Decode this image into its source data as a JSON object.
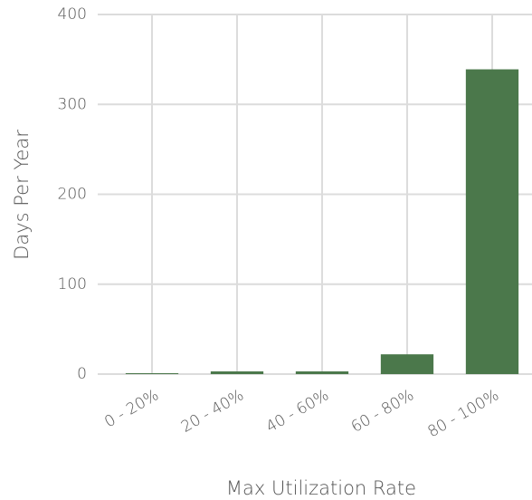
{
  "chart_data": {
    "type": "bar",
    "categories": [
      "0 - 20%",
      "20 - 40%",
      "40 - 60%",
      "60 - 80%",
      "80 - 100%"
    ],
    "values": [
      1,
      3,
      3,
      22,
      339
    ],
    "color": "#4b784b",
    "xlabel": "Max Utilization Rate",
    "ylabel": "Days Per Year",
    "ylim": [
      0,
      400
    ],
    "yticks": [
      0,
      100,
      200,
      300,
      400
    ],
    "grid": true
  }
}
